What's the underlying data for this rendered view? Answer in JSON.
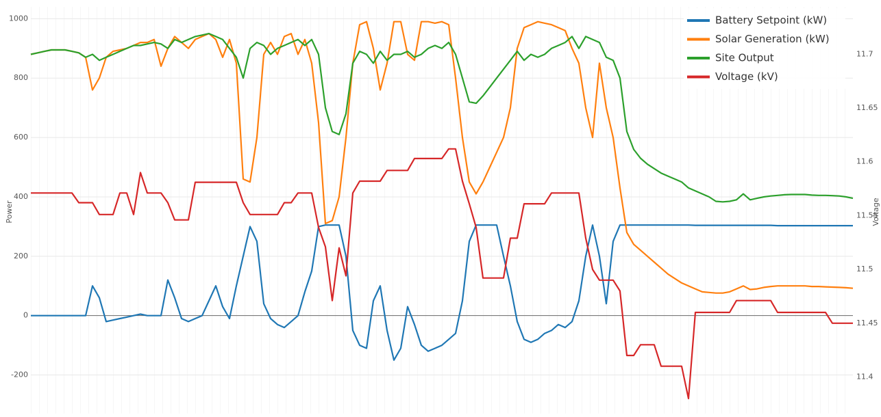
{
  "chart_data": {
    "type": "line",
    "ylabel": "Power",
    "y2label": "Voltage",
    "ylim": [
      -330,
      1040
    ],
    "yticks": [
      -200,
      0,
      200,
      400,
      600,
      800,
      1000
    ],
    "y2lim": [
      11.366,
      11.744
    ],
    "y2ticks": [
      11.4,
      11.45,
      11.5,
      11.55,
      11.6,
      11.65,
      11.7
    ],
    "grid": true,
    "legend": "top-right",
    "series": [
      {
        "name": "Battery Setpoint (kW)",
        "color": "#1f77b4",
        "values": [
          0,
          0,
          0,
          0,
          0,
          0,
          0,
          0,
          0,
          100,
          60,
          -20,
          -15,
          -10,
          -5,
          0,
          5,
          0,
          0,
          0,
          120,
          60,
          -10,
          -20,
          -10,
          0,
          50,
          100,
          30,
          -10,
          100,
          200,
          300,
          250,
          40,
          -10,
          -30,
          -40,
          -20,
          0,
          80,
          150,
          300,
          305,
          305,
          305,
          200,
          -50,
          -100,
          -110,
          50,
          100,
          -50,
          -150,
          -110,
          30,
          -30,
          -100,
          -120,
          -110,
          -100,
          -80,
          -60,
          50,
          250,
          305,
          305,
          305,
          305,
          200,
          100,
          -20,
          -80,
          -90,
          -80,
          -60,
          -50,
          -30,
          -40,
          -20,
          50,
          200,
          305,
          200,
          40,
          250,
          305,
          305,
          305,
          305,
          305,
          305,
          305,
          305,
          305,
          305,
          305,
          304,
          304,
          304,
          304,
          304,
          304,
          304,
          304,
          304,
          304,
          304,
          304,
          303,
          303,
          303,
          303,
          303,
          303,
          303,
          303,
          303,
          303,
          303,
          303
        ]
      },
      {
        "name": "Solar Generation (kW)",
        "color": "#ff7f0e",
        "values": [
          880,
          885,
          890,
          895,
          895,
          895,
          890,
          885,
          870,
          760,
          800,
          870,
          890,
          895,
          900,
          910,
          920,
          920,
          930,
          840,
          900,
          940,
          920,
          900,
          930,
          940,
          950,
          930,
          870,
          930,
          850,
          460,
          450,
          600,
          880,
          920,
          880,
          940,
          950,
          880,
          930,
          850,
          650,
          310,
          320,
          400,
          600,
          850,
          980,
          990,
          900,
          760,
          850,
          990,
          990,
          880,
          860,
          990,
          990,
          985,
          990,
          980,
          800,
          600,
          450,
          410,
          450,
          500,
          550,
          600,
          700,
          900,
          970,
          980,
          990,
          985,
          980,
          970,
          960,
          900,
          850,
          700,
          600,
          850,
          700,
          600,
          430,
          280,
          240,
          220,
          200,
          180,
          160,
          140,
          125,
          110,
          100,
          90,
          80,
          78,
          76,
          76,
          80,
          90,
          100,
          88,
          90,
          95,
          98,
          100,
          100,
          100,
          100,
          100,
          98,
          98,
          97,
          96,
          95,
          94,
          92
        ]
      },
      {
        "name": "Site Output",
        "color": "#2ca02c",
        "values": [
          880,
          885,
          890,
          895,
          895,
          895,
          890,
          885,
          870,
          880,
          860,
          870,
          880,
          890,
          900,
          910,
          910,
          915,
          920,
          915,
          900,
          930,
          920,
          930,
          940,
          945,
          950,
          940,
          930,
          900,
          870,
          800,
          900,
          920,
          910,
          880,
          900,
          910,
          920,
          930,
          910,
          930,
          880,
          700,
          620,
          610,
          680,
          850,
          890,
          880,
          850,
          890,
          860,
          880,
          880,
          890,
          870,
          880,
          900,
          910,
          900,
          920,
          880,
          800,
          720,
          715,
          740,
          770,
          800,
          830,
          860,
          890,
          860,
          880,
          870,
          880,
          900,
          910,
          920,
          940,
          900,
          940,
          930,
          920,
          870,
          860,
          800,
          620,
          560,
          530,
          510,
          495,
          480,
          470,
          460,
          450,
          430,
          420,
          410,
          400,
          385,
          383,
          385,
          390,
          410,
          390,
          395,
          400,
          403,
          405,
          407,
          408,
          408,
          408,
          406,
          405,
          405,
          404,
          403,
          400,
          395
        ]
      },
      {
        "name": "Voltage (kV)",
        "color": "#d62728",
        "axis": "y2",
        "values": [
          11.571,
          11.571,
          11.571,
          11.571,
          11.571,
          11.571,
          11.571,
          11.562,
          11.562,
          11.562,
          11.551,
          11.551,
          11.551,
          11.571,
          11.571,
          11.551,
          11.59,
          11.571,
          11.571,
          11.571,
          11.562,
          11.546,
          11.546,
          11.546,
          11.581,
          11.581,
          11.581,
          11.581,
          11.581,
          11.581,
          11.581,
          11.562,
          11.551,
          11.551,
          11.551,
          11.551,
          11.551,
          11.562,
          11.562,
          11.571,
          11.571,
          11.571,
          11.539,
          11.521,
          11.471,
          11.52,
          11.494,
          11.571,
          11.582,
          11.582,
          11.582,
          11.582,
          11.592,
          11.592,
          11.592,
          11.592,
          11.603,
          11.603,
          11.603,
          11.603,
          11.603,
          11.612,
          11.612,
          11.582,
          11.561,
          11.539,
          11.492,
          11.492,
          11.492,
          11.492,
          11.529,
          11.529,
          11.561,
          11.561,
          11.561,
          11.561,
          11.571,
          11.571,
          11.571,
          11.571,
          11.571,
          11.529,
          11.5,
          11.49,
          11.49,
          11.49,
          11.48,
          11.42,
          11.42,
          11.43,
          11.43,
          11.43,
          11.41,
          11.41,
          11.41,
          11.41,
          11.38,
          11.46,
          11.46,
          11.46,
          11.46,
          11.46,
          11.46,
          11.471,
          11.471,
          11.471,
          11.471,
          11.471,
          11.471,
          11.46,
          11.46,
          11.46,
          11.46,
          11.46,
          11.46,
          11.46,
          11.46,
          11.45,
          11.45,
          11.45,
          11.45
        ]
      }
    ]
  }
}
